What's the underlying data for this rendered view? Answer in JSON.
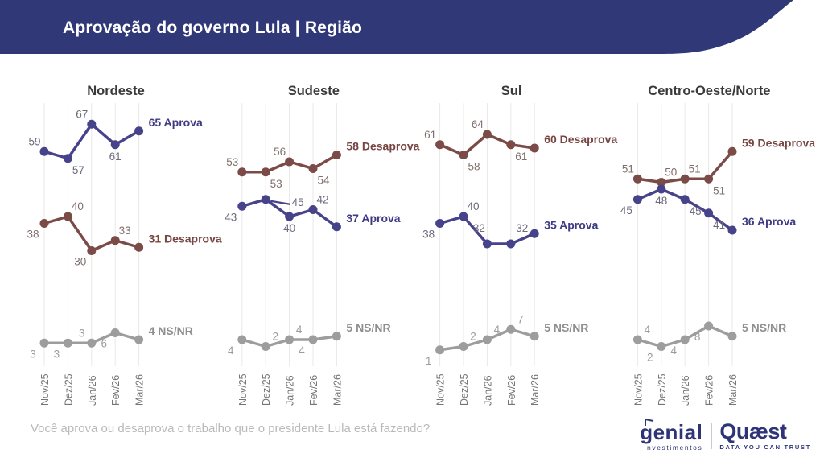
{
  "header": {
    "title": "Aprovação do governo Lula | Região"
  },
  "footer": {
    "question": "Você aprova ou desaprova o trabalho que o presidente Lula está fazendo?",
    "logo_genial": {
      "name": "genial",
      "sub": "investimentos"
    },
    "logo_quaest": {
      "name": "Quæst",
      "sub": "DATA YOU CAN TRUST"
    }
  },
  "colors": {
    "header_bg": "#313878",
    "aprova": "#47438b",
    "desaprova": "#7b4b48",
    "nsnr": "#9d9d9d",
    "aprova_label": "#6d6a7c",
    "desaprova_label": "#7f6f6c",
    "nsnr_label": "#9c9c9c",
    "aprova_end": "#3e3b82",
    "desaprova_end": "#774642",
    "nsnr_end": "#8f8f8f",
    "grid": "#e9e9e9",
    "axis_text": "#757575",
    "title_text": "#3a3a3a",
    "question_text": "#b9b9b9",
    "logo_navy": "#2e3477"
  },
  "chart_data": [
    {
      "type": "line",
      "title": "Nordeste",
      "categories": [
        "Nov/25",
        "Dez/25",
        "Jan/26",
        "Fev/26",
        "Mar/26"
      ],
      "series": [
        {
          "name": "Desaprova",
          "key": "desaprova",
          "values": [
            38,
            40,
            30,
            33,
            31
          ],
          "end_label": "31 Desaprova",
          "label_pos": [
            "bl",
            "ar",
            "bl",
            "ar",
            ""
          ]
        },
        {
          "name": "Aprova",
          "key": "aprova",
          "values": [
            59,
            57,
            67,
            61,
            65
          ],
          "end_label": "65 Aprova",
          "label_pos": [
            "al",
            "br",
            "al",
            "b",
            ""
          ]
        },
        {
          "name": "NS/NR",
          "key": "nsnr",
          "values": [
            3,
            3,
            3,
            6,
            4
          ],
          "end_label": "4 NS/NR",
          "label_pos": [
            "bl",
            "bl",
            "al",
            "bl",
            ""
          ]
        }
      ]
    },
    {
      "type": "line",
      "title": "Sudeste",
      "categories": [
        "Nov/25",
        "Dez/25",
        "Jan/26",
        "Fev/26",
        "Mar/26"
      ],
      "series": [
        {
          "name": "Desaprova",
          "key": "desaprova",
          "values": [
            53,
            53,
            56,
            54,
            58
          ],
          "end_label": "58 Desaprova",
          "label_pos": [
            "al",
            "br",
            "al",
            "br",
            ""
          ]
        },
        {
          "name": "Aprova",
          "key": "aprova",
          "values": [
            43,
            45,
            40,
            42,
            37
          ],
          "end_label": "37 Aprova",
          "label_pos": [
            "bl",
            "rr",
            "b",
            "ar",
            ""
          ]
        },
        {
          "name": "NS/NR",
          "key": "nsnr",
          "values": [
            4,
            2,
            4,
            4,
            5
          ],
          "end_label": "5 NS/NR",
          "label_pos": [
            "bl",
            "ar",
            "ar",
            "bl",
            ""
          ]
        }
      ]
    },
    {
      "type": "line",
      "title": "Sul",
      "categories": [
        "Nov/25",
        "Dez/25",
        "Jan/26",
        "Fev/26",
        "Mar/26"
      ],
      "series": [
        {
          "name": "Desaprova",
          "key": "desaprova",
          "values": [
            61,
            58,
            64,
            61,
            60
          ],
          "end_label": "60 Desaprova",
          "label_pos": [
            "al",
            "br",
            "al",
            "br",
            ""
          ]
        },
        {
          "name": "Aprova",
          "key": "aprova",
          "values": [
            38,
            40,
            32,
            32,
            35
          ],
          "end_label": "35 Aprova",
          "label_pos": [
            "bl",
            "ar",
            "alh",
            "ah",
            ""
          ]
        },
        {
          "name": "NS/NR",
          "key": "nsnr",
          "values": [
            1,
            2,
            4,
            7,
            5
          ],
          "end_label": "5 NS/NR",
          "label_pos": [
            "bl",
            "ar",
            "ar",
            "ar",
            ""
          ]
        }
      ]
    },
    {
      "type": "line",
      "title": "Centro-Oeste/Norte",
      "categories": [
        "Nov/25",
        "Dez/25",
        "Jan/26",
        "Fev/26",
        "Mar/26"
      ],
      "series": [
        {
          "name": "Desaprova",
          "key": "desaprova",
          "values": [
            51,
            50,
            51,
            51,
            59
          ],
          "end_label": "59 Desaprova",
          "label_pos": [
            "al",
            "ar",
            "ar",
            "br",
            ""
          ]
        },
        {
          "name": "Aprova",
          "key": "aprova",
          "values": [
            45,
            48,
            45,
            41,
            36
          ],
          "end_label": "36 Aprova",
          "label_pos": [
            "bl",
            "b",
            "br",
            "br",
            ""
          ]
        },
        {
          "name": "NS/NR",
          "key": "nsnr",
          "values": [
            4,
            2,
            4,
            8,
            5
          ],
          "end_label": "5 NS/NR",
          "label_pos": [
            "ar",
            "bl",
            "bl",
            "bl",
            ""
          ]
        }
      ]
    }
  ]
}
